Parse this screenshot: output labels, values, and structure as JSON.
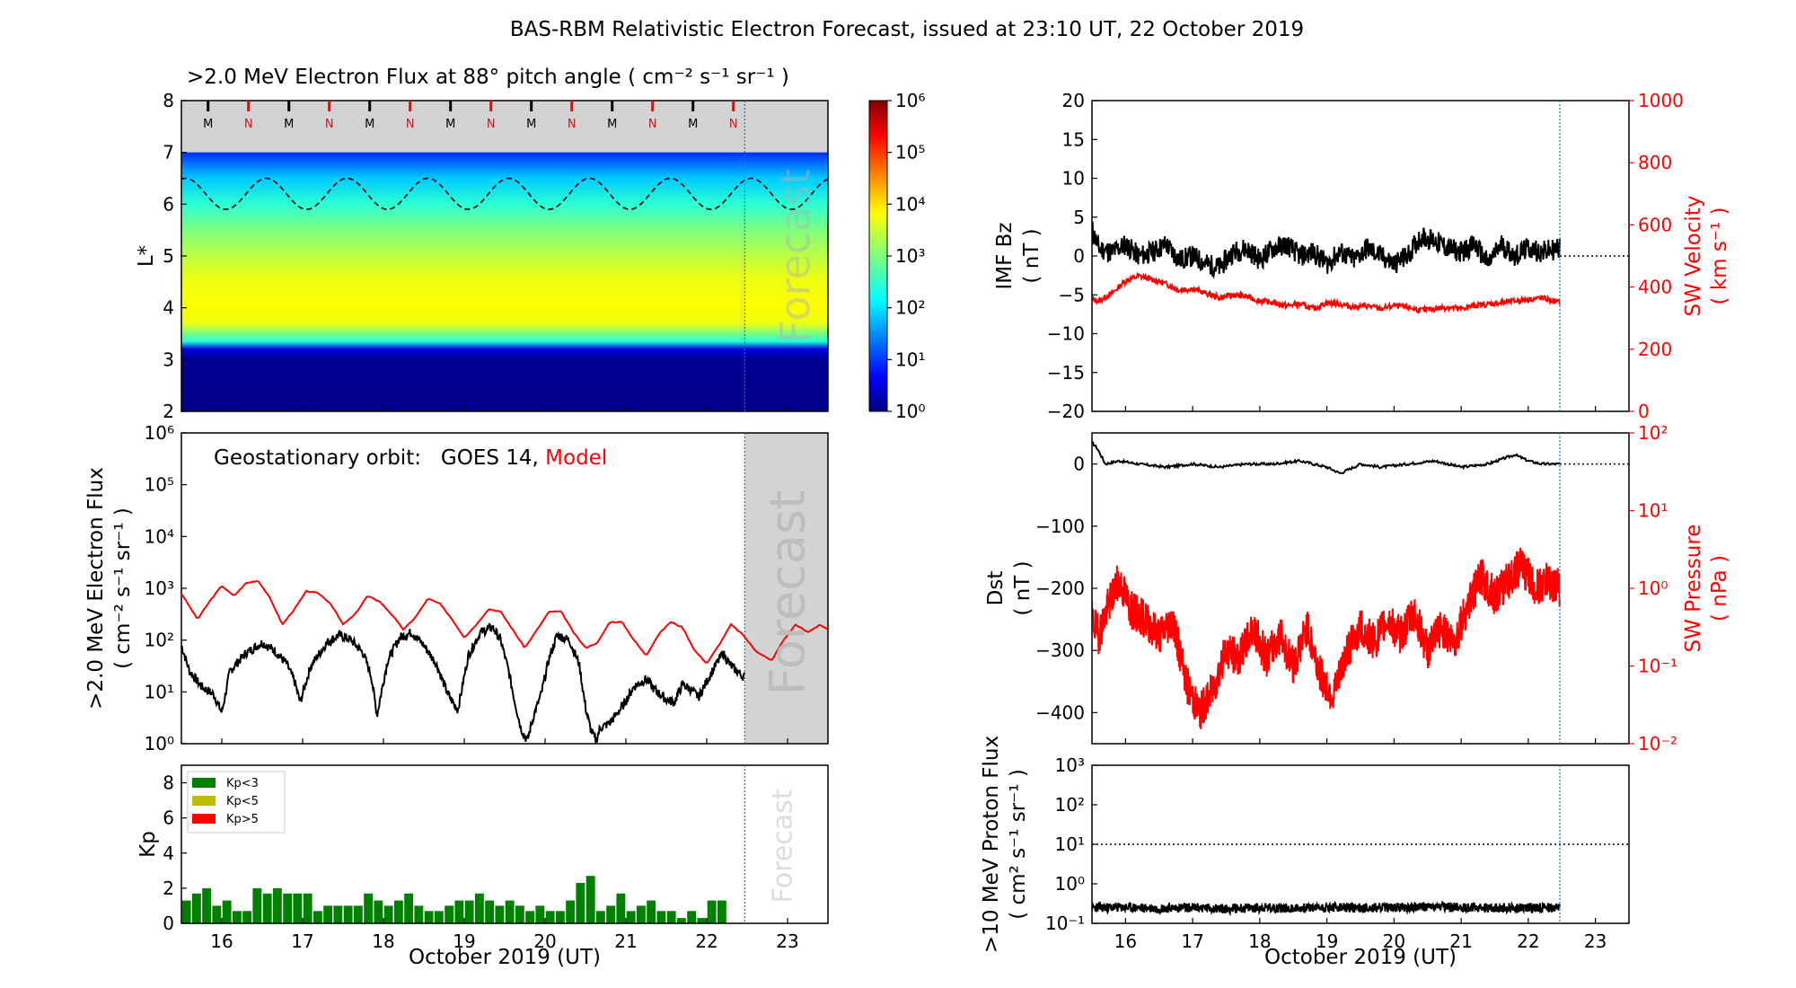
{
  "title": "BAS-RBM Relativistic Electron Forecast, issued at 23:10 UT, 22 October 2019",
  "chart_data": [
    {
      "id": "flux_map",
      "type": "heatmap",
      "title": ">2.0 MeV Electron Flux at 88° pitch angle ( cm⁻² s⁻¹ sr⁻¹ )",
      "ylabel": "L*",
      "ylim": [
        2,
        8
      ],
      "yticks": [
        2,
        3,
        4,
        5,
        6,
        7,
        8
      ],
      "xlim": [
        15.5,
        23.5
      ],
      "forecast_start": 22.47,
      "forecast_label": "Forecast",
      "colorbar": {
        "scale": "log",
        "min_exp": 0,
        "max_exp": 6,
        "tick_labels": [
          "10⁰",
          "10¹",
          "10²",
          "10³",
          "10⁴",
          "10⁵",
          "10⁶"
        ]
      },
      "profile": {
        "L": [
          2.0,
          3.0,
          3.2,
          3.35,
          3.7,
          4.0,
          4.6,
          5.0,
          5.5,
          6.0,
          6.5,
          6.8,
          7.0
        ],
        "log_flux": [
          0.05,
          0.1,
          0.5,
          2.4,
          3.7,
          3.85,
          3.7,
          3.4,
          3.0,
          2.45,
          1.85,
          1.3,
          0.9
        ]
      },
      "magnetopause_dashed_L": {
        "mean": 6.2,
        "amplitude": 0.3,
        "period_days": 1.0
      },
      "mlt_markers": [
        "M",
        "N",
        "M",
        "N",
        "M",
        "N",
        "M",
        "N",
        "M",
        "N",
        "M",
        "N",
        "M",
        "N"
      ],
      "mlt_marker_times": [
        15.83,
        16.33,
        16.83,
        17.33,
        17.83,
        18.33,
        18.83,
        19.33,
        19.83,
        20.33,
        20.83,
        21.33,
        21.83,
        22.33
      ],
      "mlt_colors": {
        "M": "#000000",
        "N": "#ff0000"
      }
    },
    {
      "id": "geo_flux",
      "type": "line",
      "ylabel": [
        ">2.0 MeV Electron Flux",
        "( cm⁻² s⁻¹ sr⁻¹ )"
      ],
      "yscale": "log",
      "ylim_exp": [
        0,
        6
      ],
      "ytick_labels": [
        "10⁰",
        "10¹",
        "10²",
        "10³",
        "10⁴",
        "10⁵",
        "10⁶"
      ],
      "xlim": [
        15.5,
        23.5
      ],
      "forecast_start": 22.47,
      "forecast_label": "Forecast",
      "legend_prefix": "Geostationary orbit:   GOES 14, ",
      "legend_model": "Model",
      "series": [
        {
          "name": "Model",
          "color": "#ff0000",
          "x": [
            15.5,
            15.7,
            15.85,
            16.0,
            16.15,
            16.3,
            16.45,
            16.6,
            16.75,
            16.9,
            17.05,
            17.2,
            17.35,
            17.5,
            17.65,
            17.8,
            17.95,
            18.1,
            18.25,
            18.4,
            18.55,
            18.7,
            18.85,
            19.0,
            19.15,
            19.3,
            19.45,
            19.6,
            19.75,
            19.9,
            20.05,
            20.2,
            20.35,
            20.5,
            20.65,
            20.8,
            20.95,
            21.1,
            21.25,
            21.4,
            21.55,
            21.7,
            21.85,
            22.0,
            22.15,
            22.3,
            22.45,
            22.6,
            22.8,
            22.95,
            23.1,
            23.25,
            23.4,
            23.5
          ],
          "log_y": [
            2.9,
            2.4,
            2.75,
            3.05,
            2.85,
            3.1,
            3.15,
            2.8,
            2.3,
            2.6,
            2.95,
            2.9,
            2.7,
            2.3,
            2.5,
            2.85,
            2.75,
            2.5,
            2.2,
            2.45,
            2.8,
            2.7,
            2.4,
            2.05,
            2.3,
            2.6,
            2.55,
            2.2,
            1.85,
            2.2,
            2.55,
            2.55,
            2.15,
            1.85,
            1.95,
            2.35,
            2.35,
            2.0,
            1.7,
            2.1,
            2.35,
            2.25,
            1.8,
            1.55,
            1.9,
            2.3,
            2.1,
            1.8,
            1.6,
            2.0,
            2.3,
            2.15,
            2.3,
            2.2
          ]
        },
        {
          "name": "GOES 14",
          "color": "#000000",
          "x": [
            15.5,
            15.6,
            15.75,
            15.9,
            16.0,
            16.1,
            16.3,
            16.5,
            16.65,
            16.8,
            16.9,
            16.97,
            17.1,
            17.3,
            17.45,
            17.6,
            17.75,
            17.85,
            17.92,
            18.05,
            18.2,
            18.35,
            18.5,
            18.65,
            18.8,
            18.92,
            19.05,
            19.2,
            19.35,
            19.45,
            19.55,
            19.62,
            19.7,
            19.78,
            19.85,
            19.95,
            20.05,
            20.15,
            20.3,
            20.42,
            20.5,
            20.56,
            20.63,
            20.68,
            20.8,
            20.95,
            21.1,
            21.25,
            21.35,
            21.5,
            21.6,
            21.7,
            21.8,
            21.9,
            22.05,
            22.2,
            22.3,
            22.45
          ],
          "log_y": [
            1.9,
            1.4,
            1.1,
            0.95,
            0.6,
            1.4,
            1.75,
            1.95,
            1.8,
            1.55,
            1.2,
            0.8,
            1.5,
            1.95,
            2.1,
            2.0,
            1.75,
            1.3,
            0.55,
            1.6,
            2.05,
            2.15,
            1.9,
            1.55,
            0.95,
            0.65,
            1.7,
            2.15,
            2.25,
            2.0,
            1.4,
            0.85,
            0.3,
            0.05,
            0.5,
            0.95,
            1.65,
            2.1,
            2.0,
            1.55,
            0.7,
            0.3,
            0.05,
            0.3,
            0.4,
            0.7,
            1.1,
            1.25,
            1.05,
            0.85,
            0.8,
            1.15,
            1.05,
            0.9,
            1.35,
            1.75,
            1.5,
            1.3
          ]
        }
      ]
    },
    {
      "id": "kp",
      "type": "bar",
      "ylabel": "Kp",
      "ylim": [
        0,
        9
      ],
      "yticks": [
        0,
        2,
        4,
        6,
        8
      ],
      "xlim": [
        15.5,
        23.5
      ],
      "bar_width_days": 0.11,
      "forecast_start": 22.47,
      "forecast_label": "Forecast",
      "legend": [
        {
          "label": "Kp<3",
          "color": "#008000"
        },
        {
          "label": "Kp<5",
          "color": "#bfbf00"
        },
        {
          "label": "Kp>5",
          "color": "#ff0000"
        }
      ],
      "values": [
        1.3,
        1.7,
        2.0,
        1.0,
        1.3,
        0.7,
        0.7,
        2.0,
        1.7,
        2.0,
        1.7,
        1.7,
        1.7,
        0.7,
        1.0,
        1.0,
        1.0,
        1.0,
        1.7,
        1.3,
        1.0,
        1.3,
        1.7,
        1.0,
        0.7,
        0.7,
        1.0,
        1.3,
        1.3,
        1.7,
        1.3,
        1.0,
        1.3,
        1.0,
        0.7,
        1.0,
        0.7,
        0.7,
        1.3,
        2.3,
        2.7,
        0.7,
        1.0,
        1.7,
        0.7,
        1.0,
        1.3,
        0.7,
        0.7,
        0.3,
        0.7,
        0.3,
        1.3,
        1.3
      ],
      "x_start": 15.5625,
      "x_step": 0.125,
      "value_count": 54
    },
    {
      "id": "imf_sw",
      "type": "line",
      "ylabel": [
        "IMF Bz",
        "( nT )"
      ],
      "ylim": [
        -20,
        20
      ],
      "yticks": [
        -20,
        -15,
        -10,
        -5,
        0,
        5,
        10,
        15,
        20
      ],
      "ylabel2": [
        "SW Velocity",
        "( km s⁻¹ )"
      ],
      "ylim2": [
        0,
        1000
      ],
      "yticks2": [
        0,
        200,
        400,
        600,
        800,
        1000
      ],
      "xlim": [
        15.5,
        23.5
      ],
      "forecast_start": 22.47,
      "series": [
        {
          "name": "IMF Bz",
          "color": "#000000",
          "x": [
            15.5,
            15.6,
            15.8,
            16.0,
            16.2,
            16.4,
            16.6,
            16.8,
            17.0,
            17.2,
            17.4,
            17.6,
            17.8,
            18.0,
            18.2,
            18.4,
            18.6,
            18.8,
            19.0,
            19.2,
            19.4,
            19.6,
            19.8,
            20.0,
            20.2,
            20.4,
            20.6,
            20.8,
            21.0,
            21.2,
            21.4,
            21.6,
            21.8,
            22.0,
            22.2,
            22.47
          ],
          "y": [
            3.5,
            1.0,
            0.5,
            1.5,
            0.0,
            0.5,
            1.5,
            -0.5,
            0.0,
            -1.0,
            -1.5,
            0.5,
            1.0,
            -0.5,
            1.0,
            1.5,
            0.0,
            0.5,
            -1.0,
            0.5,
            -0.5,
            1.0,
            0.0,
            -1.0,
            0.0,
            2.5,
            2.0,
            1.0,
            0.5,
            1.5,
            -1.0,
            1.5,
            0.0,
            1.0,
            0.5,
            1.0
          ]
        },
        {
          "name": "SW Velocity",
          "color": "#ff0000",
          "axis": "right",
          "x": [
            15.5,
            15.6,
            15.8,
            16.0,
            16.2,
            16.4,
            16.6,
            16.8,
            17.0,
            17.2,
            17.4,
            17.6,
            17.8,
            18.0,
            18.2,
            18.4,
            18.6,
            18.8,
            19.0,
            19.2,
            19.4,
            19.6,
            19.8,
            20.0,
            20.2,
            20.4,
            20.6,
            20.8,
            21.0,
            21.2,
            21.4,
            21.6,
            21.8,
            22.0,
            22.2,
            22.47
          ],
          "y": [
            360,
            355,
            380,
            420,
            435,
            425,
            410,
            390,
            395,
            380,
            365,
            375,
            370,
            355,
            350,
            340,
            345,
            330,
            350,
            345,
            335,
            340,
            330,
            340,
            335,
            325,
            330,
            335,
            330,
            340,
            345,
            350,
            355,
            360,
            365,
            350
          ]
        }
      ],
      "zero_line": 0
    },
    {
      "id": "dst_swp",
      "type": "line",
      "ylabel": [
        "Dst",
        "( nT )"
      ],
      "ylim": [
        -450,
        50
      ],
      "yticks": [
        -400,
        -300,
        -200,
        -100,
        0
      ],
      "ytick_labels": [
        "−400",
        "−300",
        "−200",
        "−100",
        "0"
      ],
      "ylabel2": [
        "SW Pressure",
        "( nPa )"
      ],
      "yscale2": "log",
      "ylim2_exp": [
        -2,
        2
      ],
      "ytick_labels2": [
        "10⁻²",
        "10⁻¹",
        "10⁰",
        "10¹",
        "10²"
      ],
      "xlim": [
        15.5,
        23.5
      ],
      "forecast_start": 22.47,
      "series": [
        {
          "name": "Dst",
          "color": "#000000",
          "x": [
            15.5,
            15.58,
            15.7,
            15.9,
            16.2,
            16.6,
            17.0,
            17.4,
            17.8,
            18.2,
            18.6,
            19.0,
            19.2,
            19.5,
            19.8,
            20.2,
            20.6,
            21.0,
            21.4,
            21.8,
            22.0,
            22.2,
            22.47
          ],
          "y": [
            35,
            25,
            0,
            5,
            0,
            -5,
            0,
            -5,
            0,
            0,
            5,
            -5,
            -15,
            0,
            -5,
            0,
            5,
            -5,
            0,
            15,
            5,
            0,
            0
          ]
        },
        {
          "name": "SW Pressure",
          "color": "#ff0000",
          "axis": "right",
          "x": [
            15.5,
            15.6,
            15.75,
            15.9,
            16.1,
            16.3,
            16.5,
            16.7,
            16.9,
            17.1,
            17.3,
            17.5,
            17.7,
            17.9,
            18.1,
            18.3,
            18.5,
            18.7,
            18.9,
            19.1,
            19.3,
            19.5,
            19.7,
            19.9,
            20.1,
            20.3,
            20.5,
            20.7,
            20.9,
            21.1,
            21.3,
            21.5,
            21.7,
            21.9,
            22.1,
            22.3,
            22.47
          ],
          "log_y": [
            -0.4,
            -0.6,
            -0.2,
            0.1,
            -0.3,
            -0.4,
            -0.6,
            -0.4,
            -1.2,
            -1.6,
            -1.3,
            -0.8,
            -0.9,
            -0.5,
            -0.9,
            -0.6,
            -1.0,
            -0.5,
            -1.1,
            -1.4,
            -0.8,
            -0.5,
            -0.7,
            -0.4,
            -0.6,
            -0.3,
            -0.8,
            -0.5,
            -0.7,
            -0.2,
            0.15,
            -0.1,
            0.1,
            0.3,
            0.0,
            0.1,
            0.0
          ]
        }
      ],
      "zero_line": 0
    },
    {
      "id": "proton_flux",
      "type": "line",
      "ylabel": [
        ">10 MeV Proton Flux",
        "( cm² s⁻¹ sr⁻¹ )"
      ],
      "yscale": "log",
      "ylim_exp": [
        -1,
        3
      ],
      "ytick_labels": [
        "10⁻¹",
        "10⁰",
        "10¹",
        "10²",
        "10³"
      ],
      "threshold_exp": 1,
      "xlim": [
        15.5,
        23.5
      ],
      "forecast_start": 22.47,
      "series": [
        {
          "name": "Proton Flux",
          "color": "#000000",
          "x": [
            15.5,
            16.0,
            16.5,
            17.0,
            17.5,
            18.0,
            18.5,
            19.0,
            19.5,
            20.0,
            20.5,
            21.0,
            21.5,
            22.0,
            22.47
          ],
          "log_y": [
            -0.6,
            -0.6,
            -0.62,
            -0.6,
            -0.63,
            -0.6,
            -0.62,
            -0.6,
            -0.61,
            -0.6,
            -0.58,
            -0.6,
            -0.61,
            -0.6,
            -0.6
          ]
        }
      ]
    }
  ],
  "xaxis": {
    "label": "October 2019 (UT)",
    "ticks": [
      16,
      17,
      18,
      19,
      20,
      21,
      22,
      23
    ],
    "tick_labels": [
      "16",
      "17",
      "18",
      "19",
      "20",
      "21",
      "22",
      "23"
    ]
  }
}
